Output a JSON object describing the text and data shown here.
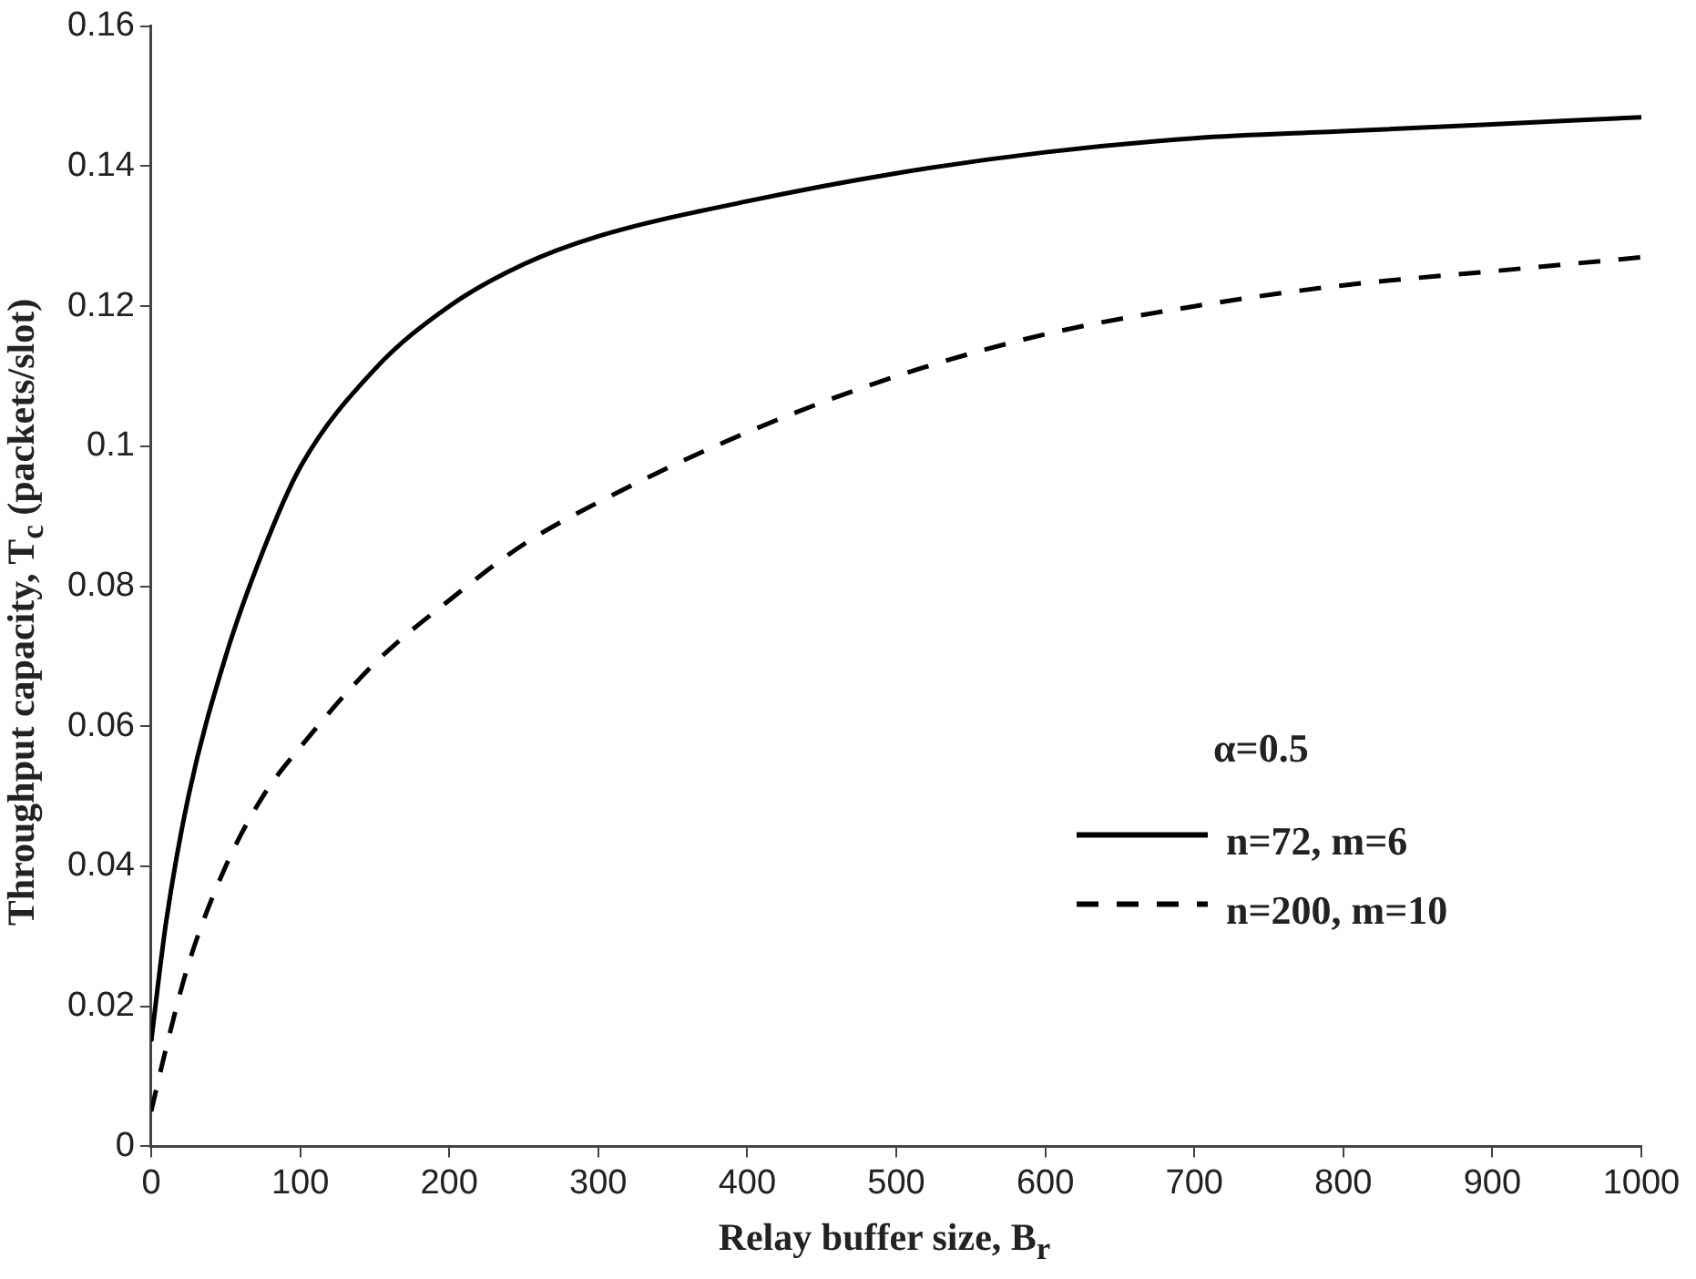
{
  "chart_data": {
    "type": "line",
    "xlabel": "Relay buffer size, B$_{r}$",
    "ylabel": "Throughput capacity, T$_{c}$ (packets/slot)",
    "legend_title": "α=0.5",
    "x": [
      0,
      10,
      25,
      50,
      75,
      100,
      150,
      200,
      250,
      300,
      400,
      500,
      600,
      700,
      800,
      900,
      1000
    ],
    "series": [
      {
        "name": "n=72, m=6",
        "color": "#000000",
        "line_style": "solid",
        "values": [
          0.015,
          0.032,
          0.05,
          0.07,
          0.085,
          0.097,
          0.111,
          0.12,
          0.126,
          0.13,
          0.135,
          0.139,
          0.142,
          0.144,
          0.145,
          0.146,
          0.147
        ]
      },
      {
        "name": "n=200, m=10",
        "color": "#000000",
        "line_style": "dashed",
        "values": [
          0.005,
          0.014,
          0.026,
          0.04,
          0.05,
          0.057,
          0.069,
          0.078,
          0.086,
          0.092,
          0.102,
          0.11,
          0.116,
          0.12,
          0.123,
          0.125,
          0.127
        ]
      }
    ],
    "xlim": [
      0,
      1000
    ],
    "xticks": [
      0,
      100,
      200,
      300,
      400,
      500,
      600,
      700,
      800,
      900,
      1000
    ],
    "ylim": [
      0,
      0.16
    ],
    "yticks": [
      0,
      0.02,
      0.04,
      0.06,
      0.08,
      0.1,
      0.12,
      0.14,
      0.16
    ],
    "grid": false,
    "legend": "bottom right",
    "marker": "none"
  }
}
